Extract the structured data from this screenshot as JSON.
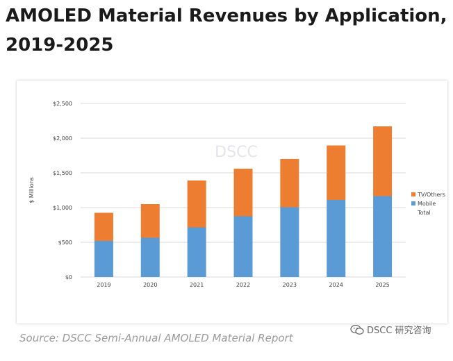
{
  "title": "AMOLED Material Revenues by Application, 2019-2025",
  "source": "Source: DSCC Semi-Annual AMOLED Material Report",
  "brand": "DSCC 研究咨询",
  "watermark": "DSCC",
  "colors": {
    "mobile": "#5b9bd5",
    "tv_others": "#ed7d31",
    "grid": "#d9d9d9",
    "axis_text": "#404040"
  },
  "chart_data": {
    "type": "bar",
    "stacked": true,
    "categories": [
      "2019",
      "2020",
      "2021",
      "2022",
      "2023",
      "2024",
      "2025"
    ],
    "series": [
      {
        "name": "Mobile",
        "values": [
          520,
          565,
          715,
          875,
          1005,
          1110,
          1165
        ]
      },
      {
        "name": "TV/Others",
        "values": [
          405,
          485,
          675,
          685,
          695,
          785,
          1005
        ]
      }
    ],
    "legend_extra": "Total",
    "ylabel": "$ Millions",
    "yticks": [
      "$0",
      "$500",
      "$1,000",
      "$1,500",
      "$2,000",
      "$2,500"
    ],
    "ylim": [
      0,
      2500
    ],
    "grid": true,
    "legend_position": "right"
  }
}
